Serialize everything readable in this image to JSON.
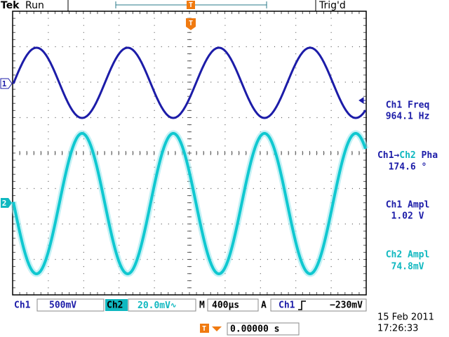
{
  "header": {
    "brand": "Tek",
    "status": "Run",
    "trigger_marker": "T",
    "trigger_state": "Trig'd"
  },
  "markers": {
    "ch1": "1",
    "ch2": "2"
  },
  "measurements": {
    "ch1_freq": {
      "label": "Ch1 Freq",
      "value": "964.1 Hz"
    },
    "phase": {
      "source": "Ch1",
      "arrow": "→",
      "target": "Ch2",
      "suffix": " Pha",
      "value": "174.6 °"
    },
    "ch1_ampl": {
      "label": "Ch1 Ampl",
      "value": "1.02 V"
    },
    "ch2_ampl": {
      "label": "Ch2 Ampl",
      "value": "74.8mV"
    }
  },
  "status_bar": {
    "ch1": "Ch1",
    "ch1_scale": "500mV",
    "ch2": "Ch2",
    "ch2_scale": "20.0mV",
    "ch2_coupling": "∿",
    "timebase_label": "M",
    "timebase": "400µs",
    "trigger_label": "A",
    "trigger_source": "Ch1",
    "trigger_level": "−230mV"
  },
  "footer": {
    "date": "15 Feb 2011",
    "time": "17:26:33",
    "trigger_position": "0.00000 s"
  }
}
